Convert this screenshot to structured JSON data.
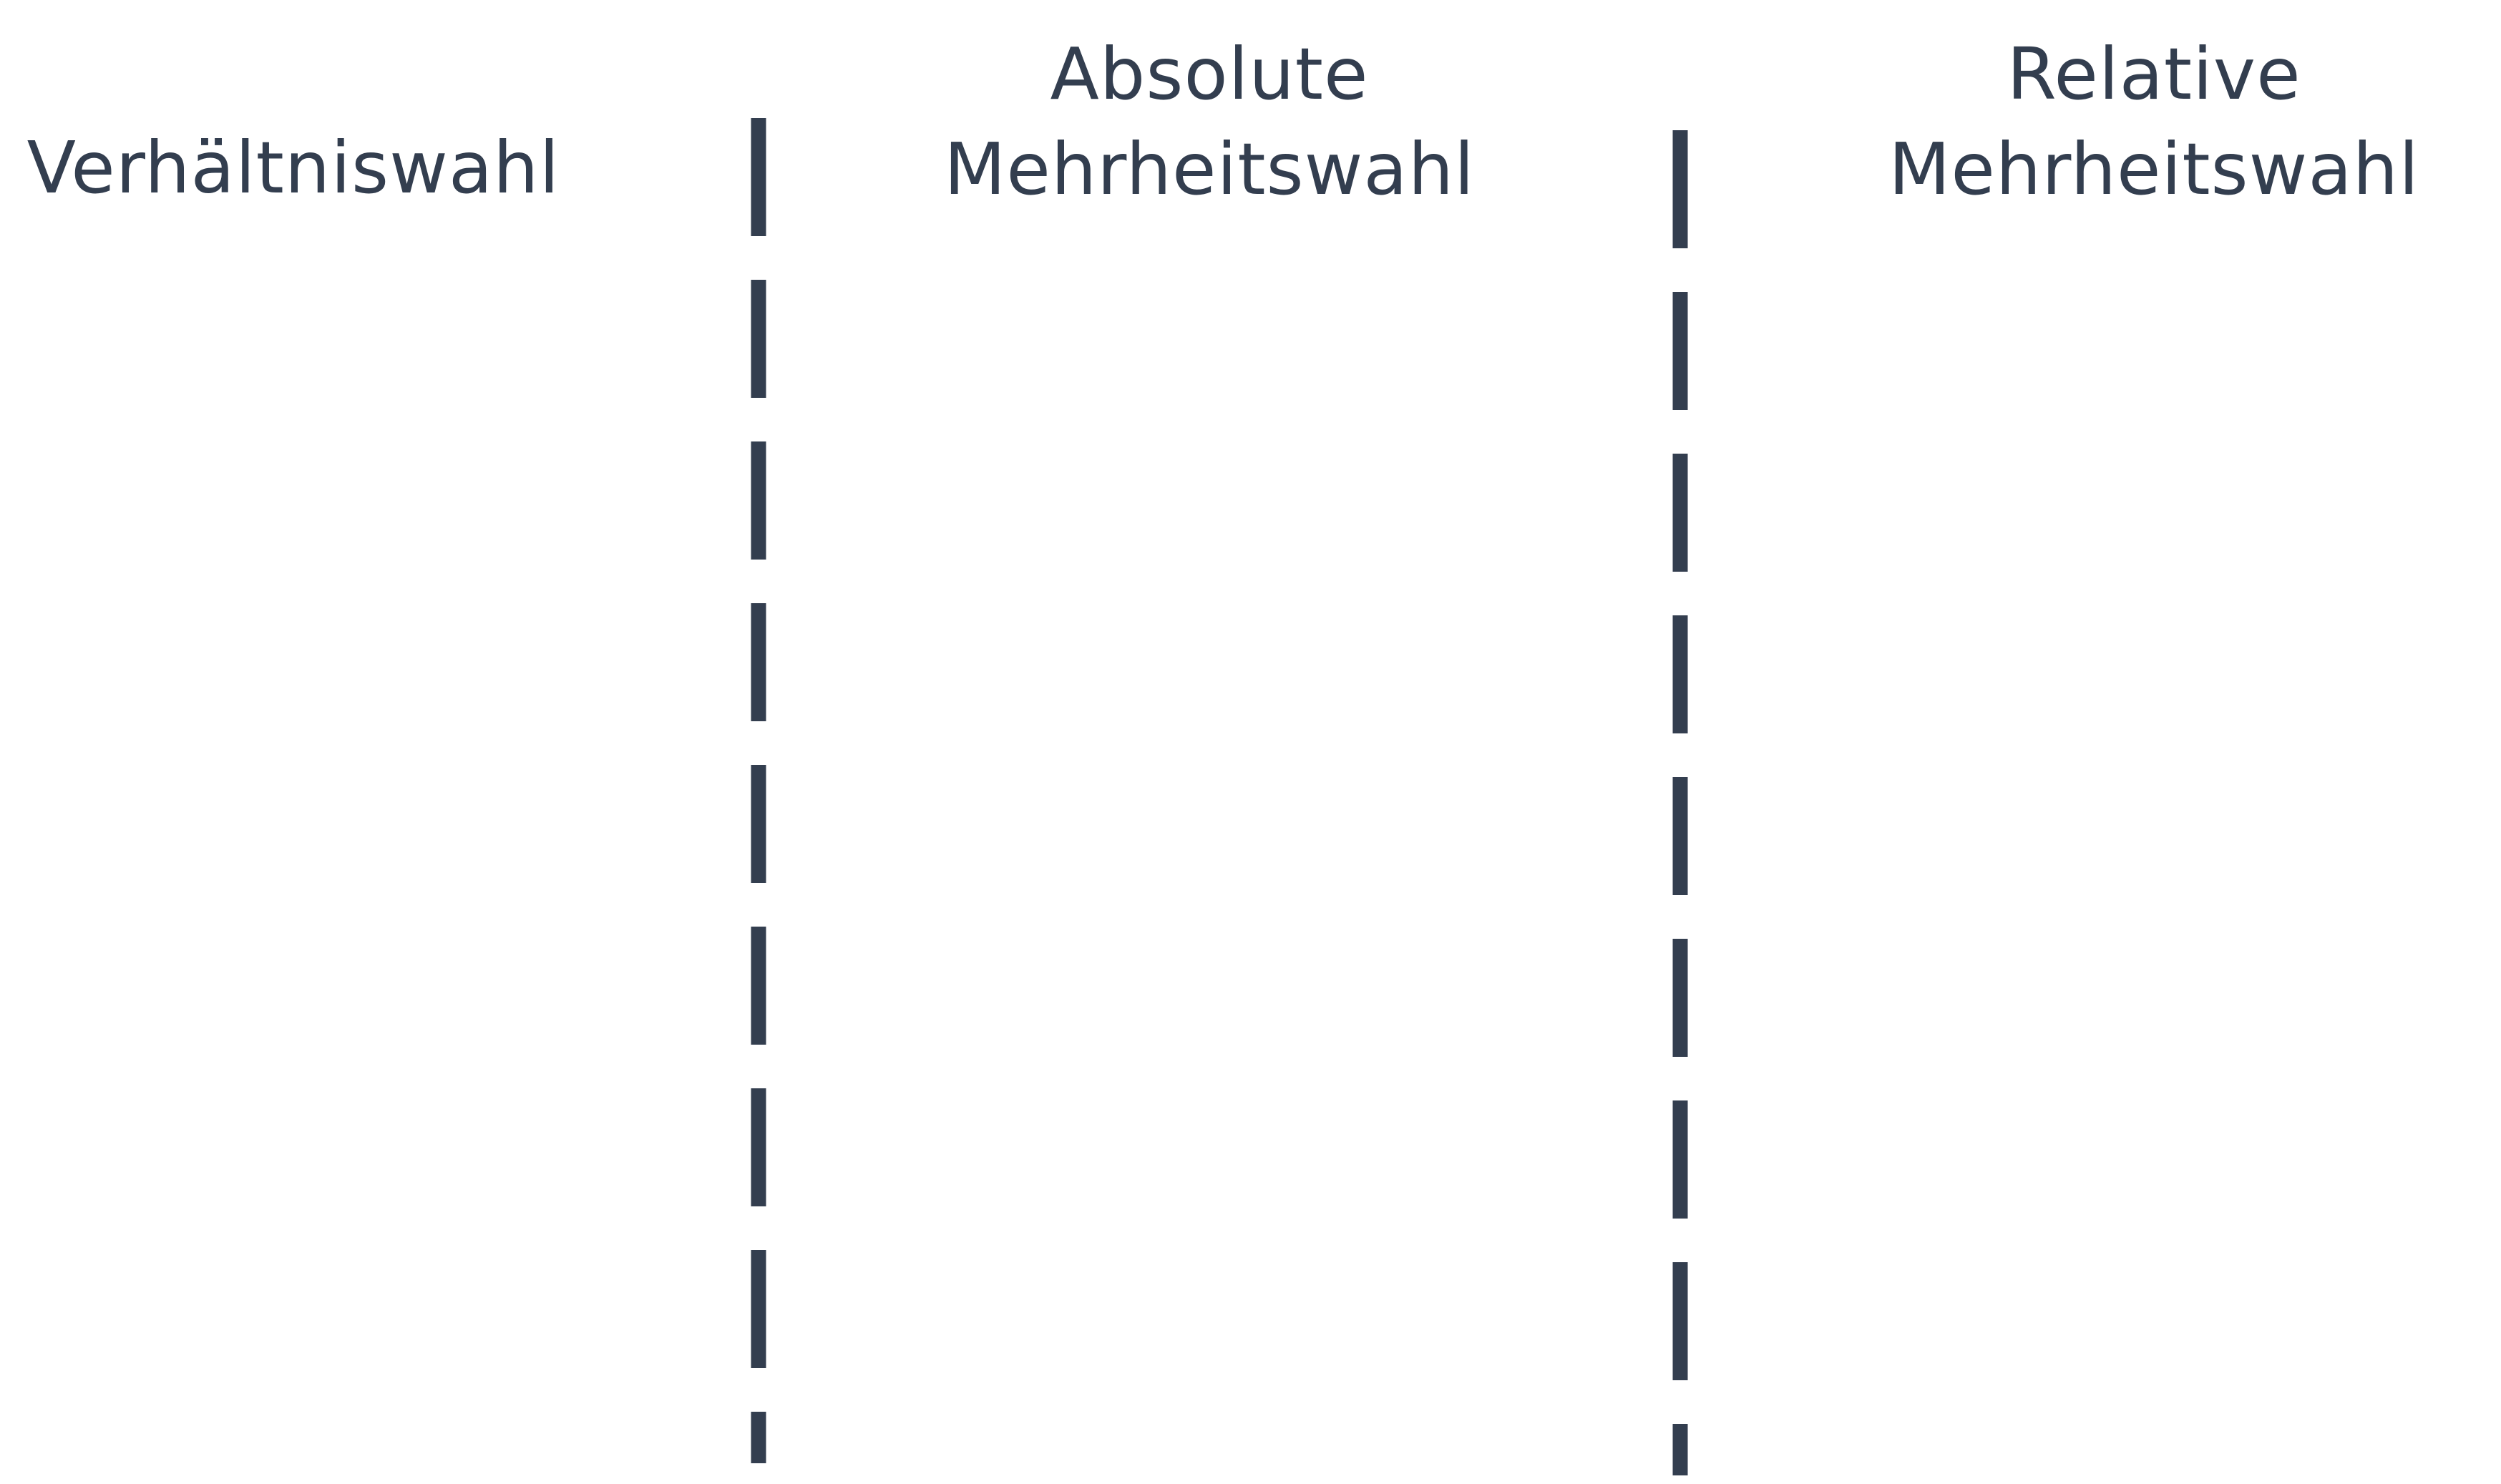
{
  "columns": [
    {
      "heading": "Verhältniswahl"
    },
    {
      "heading": "Absolute\nMehrheitswahl"
    },
    {
      "heading": "Relative\nMehrheitswahl"
    }
  ],
  "colors": {
    "text": "#333e4f",
    "divider": "#333e4f",
    "background": "#ffffff"
  },
  "dividers": {
    "style": "dashed",
    "count": 2
  }
}
